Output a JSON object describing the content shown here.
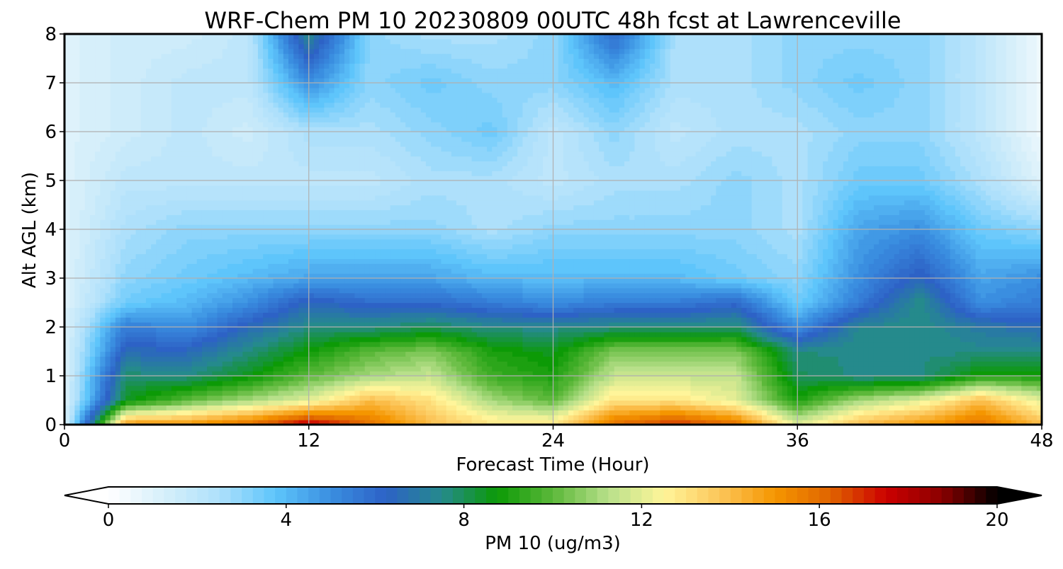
{
  "chart_data": {
    "type": "heatmap",
    "title": "WRF-Chem PM 10  20230809 00UTC 48h fcst at Lawrenceville",
    "xlabel": "Forecast Time (Hour)",
    "ylabel": "Alt AGL (km)",
    "xlim": [
      0,
      48
    ],
    "ylim": [
      0,
      8
    ],
    "x_ticks": [
      "0",
      "12",
      "24",
      "36",
      "48"
    ],
    "y_ticks": [
      "0",
      "1",
      "2",
      "3",
      "4",
      "5",
      "6",
      "7",
      "8"
    ],
    "grid": true,
    "colorbar": {
      "label": "PM 10  (ug/m3)",
      "min": 0,
      "max": 20,
      "extend": "both",
      "ticks": [
        "0",
        "4",
        "8",
        "12",
        "16",
        "20"
      ],
      "colors": [
        "#ffffff",
        "#d6effa",
        "#aee0fb",
        "#5ec5fb",
        "#3a8ee0",
        "#2d62c6",
        "#258a8c",
        "#0c9a06",
        "#5cb83a",
        "#b8e08a",
        "#fff59a",
        "#fcc65a",
        "#f59600",
        "#e06400",
        "#cc0000",
        "#8a0000",
        "#000000"
      ]
    },
    "hours": [
      0,
      3,
      6,
      9,
      12,
      15,
      18,
      21,
      24,
      27,
      30,
      33,
      36,
      39,
      42,
      45,
      48
    ],
    "altitudes_km": [
      0,
      0.5,
      1,
      1.5,
      2,
      2.5,
      3,
      4,
      5,
      6,
      7,
      8
    ],
    "values": [
      [
        1,
        15,
        15,
        16,
        18,
        16,
        14,
        13,
        13,
        16,
        17,
        16,
        12,
        14,
        15,
        16,
        14
      ],
      [
        1,
        8.5,
        10,
        11,
        12,
        14,
        13,
        11,
        10,
        13,
        13,
        12,
        9,
        11,
        12,
        14,
        12
      ],
      [
        1,
        7.8,
        7.6,
        8.6,
        10,
        11,
        11.5,
        9.5,
        9,
        11.5,
        11.5,
        11.5,
        8,
        7.5,
        7.5,
        9,
        9
      ],
      [
        1,
        6.5,
        6.5,
        7.6,
        8.8,
        10,
        10.5,
        9,
        8.5,
        10.5,
        10.5,
        10.5,
        7.6,
        7.6,
        7.6,
        7.5,
        7.7
      ],
      [
        1,
        5.5,
        5,
        6.5,
        7.6,
        7.6,
        8,
        7.5,
        7.5,
        7.6,
        7.6,
        7.8,
        5,
        7.4,
        7.6,
        7,
        6.5
      ],
      [
        1,
        3.5,
        4,
        5,
        6.5,
        6,
        6,
        5.5,
        5,
        5.5,
        5.5,
        6,
        3.5,
        5.5,
        7.6,
        5,
        5.5
      ],
      [
        1,
        3,
        3.5,
        4,
        4.5,
        4.5,
        4.5,
        4,
        4,
        4,
        4,
        3.5,
        3,
        5,
        6.5,
        4.5,
        5
      ],
      [
        1,
        2.5,
        3,
        3,
        3,
        3,
        3,
        2.5,
        3,
        3,
        3,
        3,
        2.5,
        4.5,
        5,
        3.5,
        3
      ],
      [
        1,
        2,
        2,
        2,
        2,
        2,
        2.5,
        2.5,
        2,
        2.5,
        2.5,
        3,
        2.5,
        3.5,
        3.5,
        2.5,
        1
      ],
      [
        1,
        1.5,
        2,
        1.5,
        2.5,
        2.5,
        3,
        3.5,
        2,
        3,
        2,
        2.5,
        2.5,
        3,
        3,
        2,
        0.5
      ],
      [
        1,
        1.5,
        2,
        2,
        5,
        3,
        3.5,
        3,
        3,
        4,
        2.5,
        2.5,
        3,
        3.5,
        3,
        2,
        0.5
      ],
      [
        1,
        1.5,
        1.5,
        2,
        7.5,
        3,
        2.5,
        2.5,
        3,
        6,
        2.5,
        2.5,
        3,
        3,
        3,
        2,
        0.5
      ]
    ]
  }
}
